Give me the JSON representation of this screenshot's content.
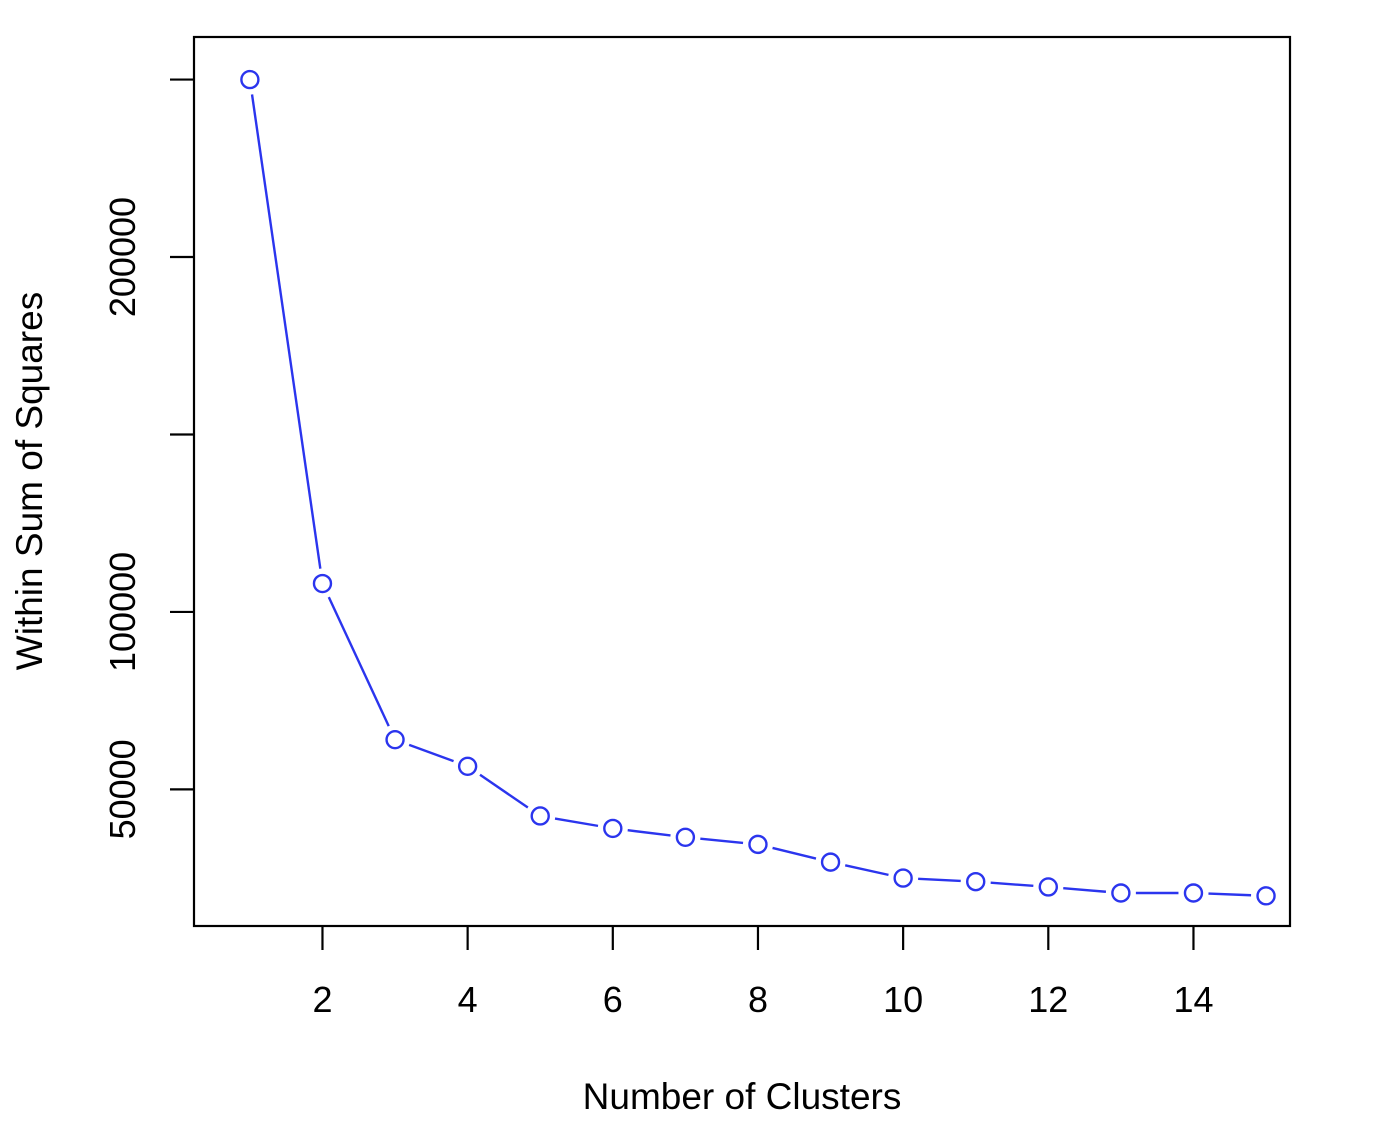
{
  "chart_data": {
    "type": "line",
    "title": "",
    "xlabel": "Number of Clusters",
    "ylabel": "Within Sum of Squares",
    "x": [
      1,
      2,
      3,
      4,
      5,
      6,
      7,
      8,
      9,
      10,
      11,
      12,
      13,
      14,
      15
    ],
    "series": [
      {
        "values": [
          250000,
          108000,
          64000,
          56500,
          42500,
          39000,
          36500,
          34500,
          29500,
          25000,
          24000,
          22500,
          20800,
          20800,
          20000
        ]
      }
    ],
    "xlim": [
      0.23,
      15.33
    ],
    "ylim": [
      11500,
      262000
    ],
    "xticks": [
      2,
      4,
      6,
      8,
      10,
      12,
      14
    ],
    "xtick_labels": [
      "2",
      "4",
      "6",
      "8",
      "10",
      "12",
      "14"
    ],
    "yticks": [
      50000,
      100000,
      150000,
      200000,
      250000
    ],
    "ytick_labels": [
      "50000",
      "100000",
      "",
      "200000",
      ""
    ],
    "line_style": "o-",
    "colors": {
      "series": "#2b35ee",
      "axes": "#000000",
      "background": "#ffffff"
    },
    "grid": false,
    "legend": "none"
  }
}
